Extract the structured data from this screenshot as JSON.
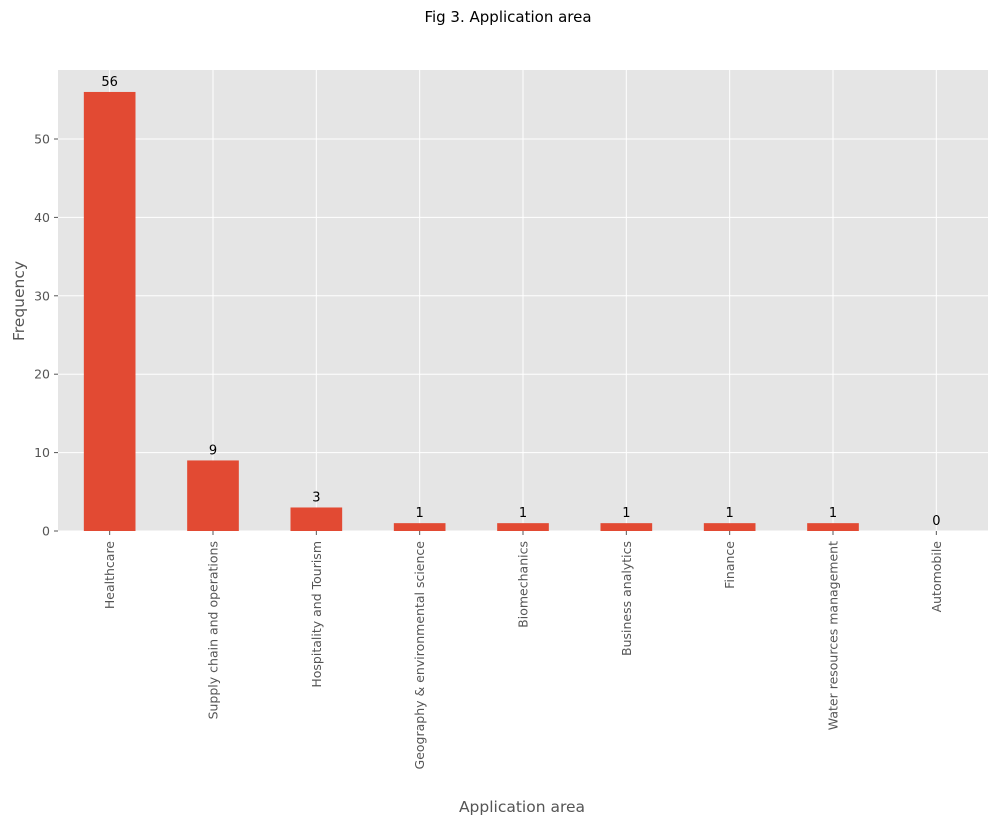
{
  "colors": {
    "bar": "#E24A33",
    "plot_background": "#E5E5E5",
    "grid": "#FFFFFF",
    "tick_text": "#555555",
    "title_text": "#000000"
  },
  "chart_data": {
    "type": "bar",
    "title": "Fig 3. Application area",
    "xlabel": "Application area",
    "ylabel": "Frequency",
    "categories": [
      "Healthcare",
      "Supply chain and operations",
      "Hospitality and Tourism",
      "Geography & environmental science",
      "Biomechanics",
      "Business analytics",
      "Finance",
      "Water resources management",
      "Automobile"
    ],
    "values": [
      56,
      9,
      3,
      1,
      1,
      1,
      1,
      1,
      0
    ],
    "data_labels": [
      "56",
      "9",
      "3",
      "1",
      "1",
      "1",
      "1",
      "1",
      "0"
    ],
    "ylim": [
      0,
      58.8
    ],
    "yticks": [
      0,
      10,
      20,
      30,
      40,
      50
    ],
    "ytick_labels": [
      "0",
      "10",
      "20",
      "30",
      "40",
      "50"
    ],
    "grid": true,
    "legend": "none",
    "style": "ggplot"
  }
}
